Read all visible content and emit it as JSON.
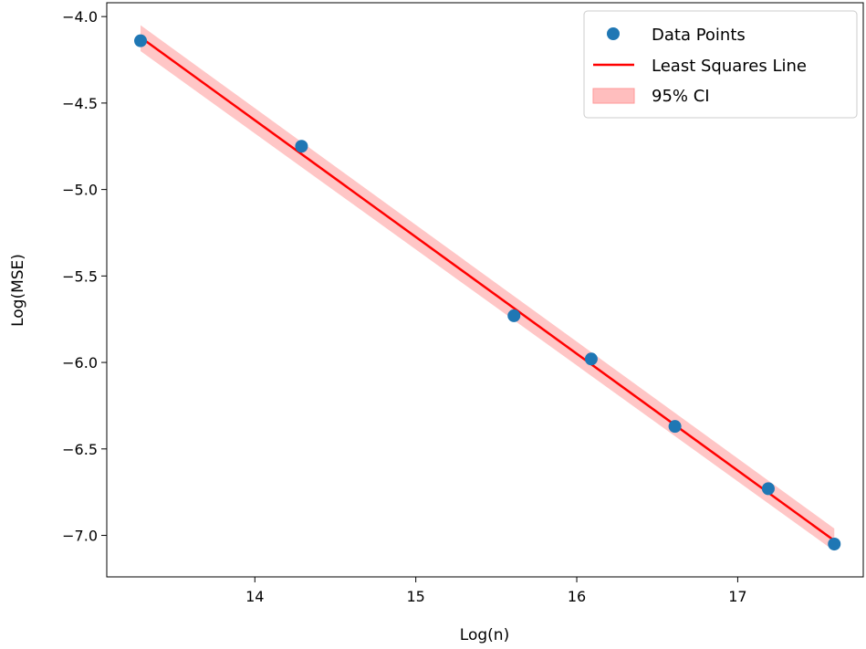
{
  "chart_data": {
    "type": "scatter",
    "xlabel": "Log(n)",
    "ylabel": "Log(MSE)",
    "xlim": [
      13.08,
      17.78
    ],
    "ylim": [
      -7.24,
      -3.92
    ],
    "x_ticks": [
      14,
      15,
      16,
      17
    ],
    "y_ticks": [
      -4.0,
      -4.5,
      -5.0,
      -5.5,
      -6.0,
      -6.5,
      -7.0
    ],
    "x_tick_labels": [
      "14",
      "15",
      "16",
      "17"
    ],
    "y_tick_labels": [
      "−4.0",
      "−4.5",
      "−5.0",
      "−5.5",
      "−6.0",
      "−6.5",
      "−7.0"
    ],
    "grid": false,
    "legend_position": "top-right",
    "legend": [
      "Data Points",
      "Least Squares Line",
      "95% CI"
    ],
    "series": [
      {
        "name": "Data Points",
        "kind": "scatter",
        "color": "#1f77b4",
        "x": [
          13.29,
          14.29,
          15.61,
          16.09,
          16.61,
          17.19,
          17.6
        ],
        "y": [
          -4.14,
          -4.75,
          -5.73,
          -5.98,
          -6.37,
          -6.73,
          -7.05
        ]
      },
      {
        "name": "Least Squares Line",
        "kind": "line",
        "color": "#ff0000",
        "x": [
          13.29,
          17.6
        ],
        "y": [
          -4.12,
          -7.03
        ]
      },
      {
        "name": "95% CI",
        "kind": "band",
        "color": "#ffb3b3",
        "x": [
          13.29,
          17.6
        ],
        "lower": [
          -4.2,
          -7.09
        ],
        "upper": [
          -4.05,
          -6.96
        ]
      }
    ]
  }
}
